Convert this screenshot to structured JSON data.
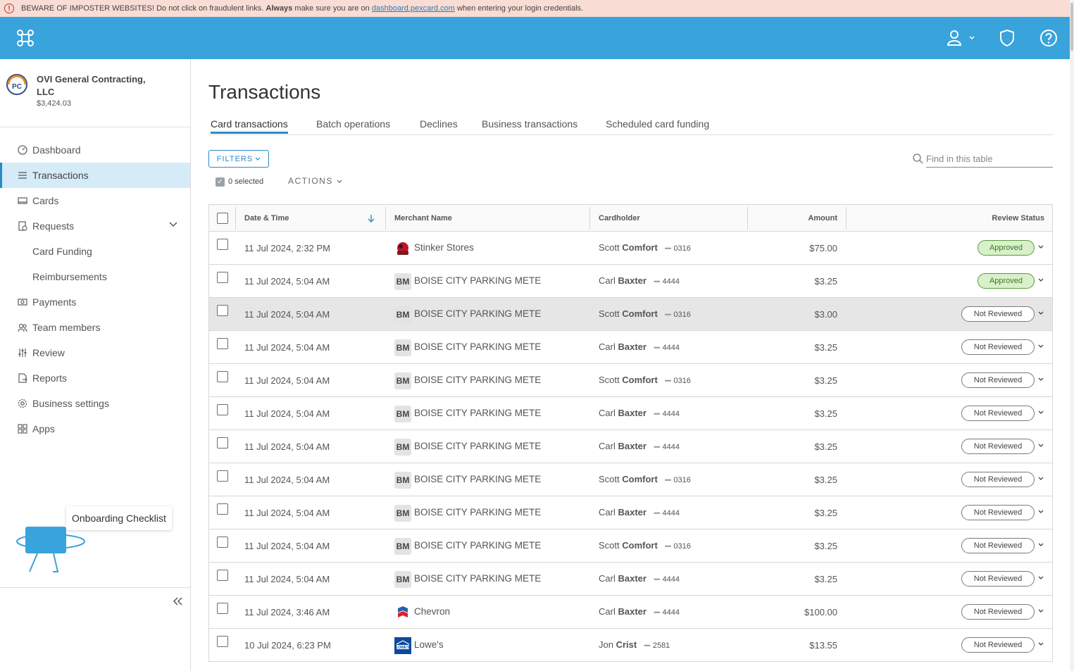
{
  "banner": {
    "prefix": "BEWARE OF IMPOSTER WEBSITES! Do not click on fraudulent links.",
    "always": "Always",
    "middle": "make sure you are on",
    "link": "dashboard.pexcard.com",
    "suffix": "when entering your login credentials."
  },
  "company": {
    "name": "OVI General Contracting, LLC",
    "balance": "$3,424.03"
  },
  "nav": {
    "dashboard": "Dashboard",
    "transactions": "Transactions",
    "cards": "Cards",
    "requests": "Requests",
    "card_funding": "Card Funding",
    "reimbursements": "Reimbursements",
    "payments": "Payments",
    "team_members": "Team members",
    "review": "Review",
    "reports": "Reports",
    "business_settings": "Business settings",
    "apps": "Apps"
  },
  "onboarding": {
    "label": "Onboarding Checklist"
  },
  "page": {
    "title": "Transactions"
  },
  "tabs": {
    "card_transactions": "Card transactions",
    "batch_operations": "Batch operations",
    "declines": "Declines",
    "business_transactions": "Business transactions",
    "scheduled_card_funding": "Scheduled card funding"
  },
  "toolbar": {
    "filters": "FILTERS",
    "search_placeholder": "Find in this table",
    "selected": "0 selected",
    "actions": "ACTIONS"
  },
  "table": {
    "headers": {
      "date": "Date & Time",
      "merchant": "Merchant Name",
      "cardholder": "Cardholder",
      "amount": "Amount",
      "status": "Review Status"
    },
    "rows": [
      {
        "date": "11 Jul 2024, 2:32 PM",
        "merchant": "Stinker Stores",
        "logo": "stinker",
        "first": "Scott",
        "last": "Comfort",
        "card": "0316",
        "amount": "$75.00",
        "status": "Approved",
        "status_type": "approved"
      },
      {
        "date": "11 Jul 2024, 5:04 AM",
        "merchant": "BOISE CITY PARKING METE",
        "logo": "BM",
        "first": "Carl",
        "last": "Baxter",
        "card": "4444",
        "amount": "$3.25",
        "status": "Approved",
        "status_type": "approved"
      },
      {
        "date": "11 Jul 2024, 5:04 AM",
        "merchant": "BOISE CITY PARKING METE",
        "logo": "BM",
        "first": "Scott",
        "last": "Comfort",
        "card": "0316",
        "amount": "$3.00",
        "status": "Not Reviewed",
        "status_type": "notrev"
      },
      {
        "date": "11 Jul 2024, 5:04 AM",
        "merchant": "BOISE CITY PARKING METE",
        "logo": "BM",
        "first": "Carl",
        "last": "Baxter",
        "card": "4444",
        "amount": "$3.25",
        "status": "Not Reviewed",
        "status_type": "notrev"
      },
      {
        "date": "11 Jul 2024, 5:04 AM",
        "merchant": "BOISE CITY PARKING METE",
        "logo": "BM",
        "first": "Scott",
        "last": "Comfort",
        "card": "0316",
        "amount": "$3.25",
        "status": "Not Reviewed",
        "status_type": "notrev"
      },
      {
        "date": "11 Jul 2024, 5:04 AM",
        "merchant": "BOISE CITY PARKING METE",
        "logo": "BM",
        "first": "Carl",
        "last": "Baxter",
        "card": "4444",
        "amount": "$3.25",
        "status": "Not Reviewed",
        "status_type": "notrev"
      },
      {
        "date": "11 Jul 2024, 5:04 AM",
        "merchant": "BOISE CITY PARKING METE",
        "logo": "BM",
        "first": "Carl",
        "last": "Baxter",
        "card": "4444",
        "amount": "$3.25",
        "status": "Not Reviewed",
        "status_type": "notrev"
      },
      {
        "date": "11 Jul 2024, 5:04 AM",
        "merchant": "BOISE CITY PARKING METE",
        "logo": "BM",
        "first": "Scott",
        "last": "Comfort",
        "card": "0316",
        "amount": "$3.25",
        "status": "Not Reviewed",
        "status_type": "notrev"
      },
      {
        "date": "11 Jul 2024, 5:04 AM",
        "merchant": "BOISE CITY PARKING METE",
        "logo": "BM",
        "first": "Carl",
        "last": "Baxter",
        "card": "4444",
        "amount": "$3.25",
        "status": "Not Reviewed",
        "status_type": "notrev"
      },
      {
        "date": "11 Jul 2024, 5:04 AM",
        "merchant": "BOISE CITY PARKING METE",
        "logo": "BM",
        "first": "Scott",
        "last": "Comfort",
        "card": "0316",
        "amount": "$3.25",
        "status": "Not Reviewed",
        "status_type": "notrev"
      },
      {
        "date": "11 Jul 2024, 5:04 AM",
        "merchant": "BOISE CITY PARKING METE",
        "logo": "BM",
        "first": "Carl",
        "last": "Baxter",
        "card": "4444",
        "amount": "$3.25",
        "status": "Not Reviewed",
        "status_type": "notrev"
      },
      {
        "date": "11 Jul 2024, 3:46 AM",
        "merchant": "Chevron",
        "logo": "chevron",
        "first": "Carl",
        "last": "Baxter",
        "card": "4444",
        "amount": "$100.00",
        "status": "Not Reviewed",
        "status_type": "notrev"
      },
      {
        "date": "10 Jul 2024, 6:23 PM",
        "merchant": "Lowe's",
        "logo": "lowes",
        "first": "Jon",
        "last": "Crist",
        "card": "2581",
        "amount": "$13.55",
        "status": "Not Reviewed",
        "status_type": "notrev"
      }
    ]
  },
  "colors": {
    "brand_blue": "#39a3dc",
    "accent": "#2a8ac9",
    "banner_bg": "#f9dcd4",
    "active_nav_bg": "#d5ebf8",
    "approved_bg": "#d9f0cb"
  }
}
